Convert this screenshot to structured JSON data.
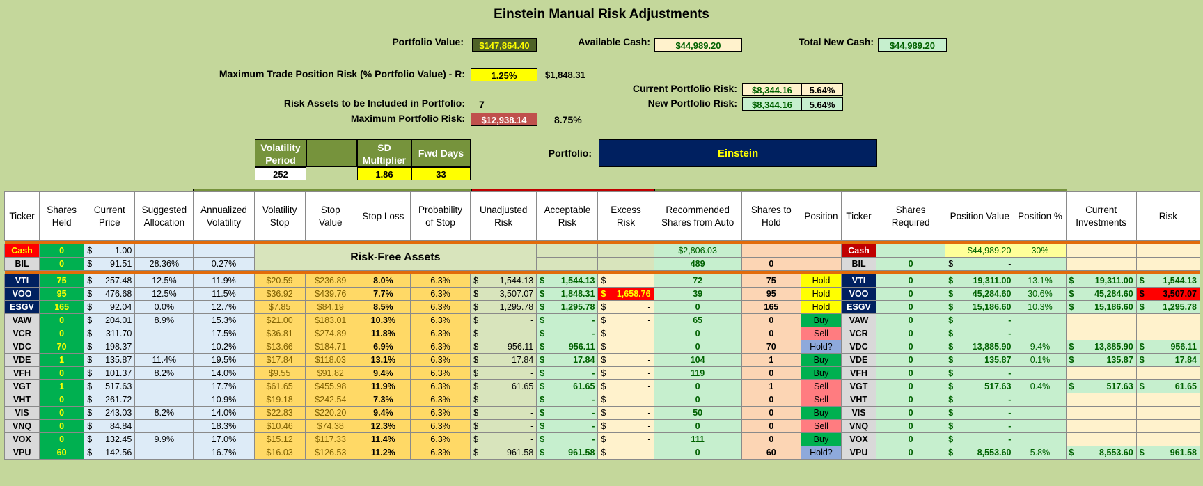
{
  "title": "Einstein Manual Risk Adjustments",
  "summary": {
    "portfolio_value_label": "Portfolio Value:",
    "portfolio_value": "$147,864.40",
    "available_cash_label": "Available Cash:",
    "available_cash": "$44,989.20",
    "total_new_cash_label": "Total New Cash:",
    "total_new_cash": "$44,989.20",
    "max_trade_risk_label": "Maximum Trade Position Risk (% Portfolio Value) - R:",
    "max_trade_risk_pct": "1.25%",
    "max_trade_risk_amt": "$1,848.31",
    "current_portfolio_risk_label": "Current Portfolio Risk:",
    "current_portfolio_risk": "$8,344.16",
    "current_portfolio_risk_pct": "5.64%",
    "new_portfolio_risk_label": "New Portfolio Risk:",
    "new_portfolio_risk": "$8,344.16",
    "new_portfolio_risk_pct": "5.64%",
    "risk_assets_label": "Risk Assets to be Included in Portfolio:",
    "risk_assets": "7",
    "max_portfolio_risk_label": "Maximum Portfolio Risk:",
    "max_portfolio_risk": "$12,938.14",
    "max_portfolio_risk_pct": "8.75%"
  },
  "params": {
    "vol_period_label": "Volatility Period",
    "vol_period": "252",
    "sd_label": "SD Multiplier",
    "sd": "1.86",
    "fwd_label": "Fwd Days",
    "fwd": "33",
    "portfolio_label": "Portfolio:",
    "portfolio_name": "Einstein"
  },
  "groups": {
    "vol_stop": "Volatility Stop",
    "risk_calc": "Risk Calculations",
    "new_holdings": "New Holdings"
  },
  "headers": [
    "Ticker",
    "Shares Held",
    "Current Price",
    "Suggested Allocation",
    "Annualized Volatility",
    "Volatility Stop",
    "Stop Value",
    "Stop Loss",
    "Probability of Stop",
    "Unadjusted Risk",
    "Acceptable Risk",
    "Excess Risk",
    "Recommended Shares from Auto",
    "Shares to Hold",
    "Position",
    "Ticker",
    "Shares Required",
    "Position Value",
    "Position %",
    "Current Investments",
    "Risk"
  ],
  "risk_free_label": "Risk-Free Assets",
  "cash_row": {
    "ticker": "Cash",
    "shares": "0",
    "price_sym": "$",
    "price": "1.00",
    "rec": "$2,806.03",
    "ticker2": "Cash",
    "posval": "$44,989.20",
    "pospct": "30%"
  },
  "bil_row": {
    "ticker": "BIL",
    "shares": "0",
    "price_sym": "$",
    "price": "91.51",
    "alloc": "28.36%",
    "vol": "0.27%",
    "rec": "489",
    "hold": "0",
    "ticker2": "BIL",
    "req": "0",
    "posval_sym": "$",
    "posval": "-"
  },
  "rows": [
    {
      "ticker": "VTI",
      "shares": "75",
      "price": "257.48",
      "alloc": "12.5%",
      "vol": "11.9%",
      "vstop": "$20.59",
      "sval": "$236.89",
      "sloss": "8.0%",
      "prob": "6.3%",
      "unadj": "1,544.13",
      "accept": "1,544.13",
      "excess": "-",
      "rec": "72",
      "hold": "75",
      "pos": "Hold",
      "req": "0",
      "posval": "19,311.00",
      "pospct": "13.1%",
      "curinv": "19,311.00",
      "risk": "1,544.13"
    },
    {
      "ticker": "VOO",
      "shares": "95",
      "price": "476.68",
      "alloc": "12.5%",
      "vol": "11.5%",
      "vstop": "$36.92",
      "sval": "$439.76",
      "sloss": "7.7%",
      "prob": "6.3%",
      "unadj": "3,507.07",
      "accept": "1,848.31",
      "excess": "1,658.76",
      "rec": "39",
      "hold": "95",
      "pos": "Hold",
      "req": "0",
      "posval": "45,284.60",
      "pospct": "30.6%",
      "curinv": "45,284.60",
      "risk": "3,507.07"
    },
    {
      "ticker": "ESGV",
      "shares": "165",
      "price": "92.04",
      "alloc": "0.0%",
      "vol": "12.7%",
      "vstop": "$7.85",
      "sval": "$84.19",
      "sloss": "8.5%",
      "prob": "6.3%",
      "unadj": "1,295.78",
      "accept": "1,295.78",
      "excess": "-",
      "rec": "0",
      "hold": "165",
      "pos": "Hold",
      "req": "0",
      "posval": "15,186.60",
      "pospct": "10.3%",
      "curinv": "15,186.60",
      "risk": "1,295.78"
    },
    {
      "ticker": "VAW",
      "shares": "0",
      "price": "204.01",
      "alloc": "8.9%",
      "vol": "15.3%",
      "vstop": "$21.00",
      "sval": "$183.01",
      "sloss": "10.3%",
      "prob": "6.3%",
      "unadj": "-",
      "accept": "-",
      "excess": "-",
      "rec": "65",
      "hold": "0",
      "pos": "Buy",
      "req": "0",
      "posval": "-",
      "pospct": "",
      "curinv": "",
      "risk": ""
    },
    {
      "ticker": "VCR",
      "shares": "0",
      "price": "311.70",
      "alloc": "",
      "vol": "17.5%",
      "vstop": "$36.81",
      "sval": "$274.89",
      "sloss": "11.8%",
      "prob": "6.3%",
      "unadj": "-",
      "accept": "-",
      "excess": "-",
      "rec": "0",
      "hold": "0",
      "pos": "Sell",
      "req": "0",
      "posval": "-",
      "pospct": "",
      "curinv": "",
      "risk": ""
    },
    {
      "ticker": "VDC",
      "shares": "70",
      "price": "198.37",
      "alloc": "",
      "vol": "10.2%",
      "vstop": "$13.66",
      "sval": "$184.71",
      "sloss": "6.9%",
      "prob": "6.3%",
      "unadj": "956.11",
      "accept": "956.11",
      "excess": "-",
      "rec": "0",
      "hold": "70",
      "pos": "Hold?",
      "req": "0",
      "posval": "13,885.90",
      "pospct": "9.4%",
      "curinv": "13,885.90",
      "risk": "956.11"
    },
    {
      "ticker": "VDE",
      "shares": "1",
      "price": "135.87",
      "alloc": "11.4%",
      "vol": "19.5%",
      "vstop": "$17.84",
      "sval": "$118.03",
      "sloss": "13.1%",
      "prob": "6.3%",
      "unadj": "17.84",
      "accept": "17.84",
      "excess": "-",
      "rec": "104",
      "hold": "1",
      "pos": "Buy",
      "req": "0",
      "posval": "135.87",
      "pospct": "0.1%",
      "curinv": "135.87",
      "risk": "17.84"
    },
    {
      "ticker": "VFH",
      "shares": "0",
      "price": "101.37",
      "alloc": "8.2%",
      "vol": "14.0%",
      "vstop": "$9.55",
      "sval": "$91.82",
      "sloss": "9.4%",
      "prob": "6.3%",
      "unadj": "-",
      "accept": "-",
      "excess": "-",
      "rec": "119",
      "hold": "0",
      "pos": "Buy",
      "req": "0",
      "posval": "-",
      "pospct": "",
      "curinv": "",
      "risk": ""
    },
    {
      "ticker": "VGT",
      "shares": "1",
      "price": "517.63",
      "alloc": "",
      "vol": "17.7%",
      "vstop": "$61.65",
      "sval": "$455.98",
      "sloss": "11.9%",
      "prob": "6.3%",
      "unadj": "61.65",
      "accept": "61.65",
      "excess": "-",
      "rec": "0",
      "hold": "1",
      "pos": "Sell",
      "req": "0",
      "posval": "517.63",
      "pospct": "0.4%",
      "curinv": "517.63",
      "risk": "61.65"
    },
    {
      "ticker": "VHT",
      "shares": "0",
      "price": "261.72",
      "alloc": "",
      "vol": "10.9%",
      "vstop": "$19.18",
      "sval": "$242.54",
      "sloss": "7.3%",
      "prob": "6.3%",
      "unadj": "-",
      "accept": "-",
      "excess": "-",
      "rec": "0",
      "hold": "0",
      "pos": "Sell",
      "req": "0",
      "posval": "-",
      "pospct": "",
      "curinv": "",
      "risk": ""
    },
    {
      "ticker": "VIS",
      "shares": "0",
      "price": "243.03",
      "alloc": "8.2%",
      "vol": "14.0%",
      "vstop": "$22.83",
      "sval": "$220.20",
      "sloss": "9.4%",
      "prob": "6.3%",
      "unadj": "-",
      "accept": "-",
      "excess": "-",
      "rec": "50",
      "hold": "0",
      "pos": "Buy",
      "req": "0",
      "posval": "-",
      "pospct": "",
      "curinv": "",
      "risk": ""
    },
    {
      "ticker": "VNQ",
      "shares": "0",
      "price": "84.84",
      "alloc": "",
      "vol": "18.3%",
      "vstop": "$10.46",
      "sval": "$74.38",
      "sloss": "12.3%",
      "prob": "6.3%",
      "unadj": "-",
      "accept": "-",
      "excess": "-",
      "rec": "0",
      "hold": "0",
      "pos": "Sell",
      "req": "0",
      "posval": "-",
      "pospct": "",
      "curinv": "",
      "risk": ""
    },
    {
      "ticker": "VOX",
      "shares": "0",
      "price": "132.45",
      "alloc": "9.9%",
      "vol": "17.0%",
      "vstop": "$15.12",
      "sval": "$117.33",
      "sloss": "11.4%",
      "prob": "6.3%",
      "unadj": "-",
      "accept": "-",
      "excess": "-",
      "rec": "111",
      "hold": "0",
      "pos": "Buy",
      "req": "0",
      "posval": "-",
      "pospct": "",
      "curinv": "",
      "risk": ""
    },
    {
      "ticker": "VPU",
      "shares": "60",
      "price": "142.56",
      "alloc": "",
      "vol": "16.7%",
      "vstop": "$16.03",
      "sval": "$126.53",
      "sloss": "11.2%",
      "prob": "6.3%",
      "unadj": "961.58",
      "accept": "961.58",
      "excess": "-",
      "rec": "0",
      "hold": "60",
      "pos": "Hold?",
      "req": "0",
      "posval": "8,553.60",
      "pospct": "5.8%",
      "curinv": "8,553.60",
      "risk": "961.58"
    }
  ],
  "colors": {
    "background": "#c4d79b",
    "navy": "#002060",
    "green_cell": "#c6efce",
    "orange": "#ffd966",
    "red": "#ff0000"
  }
}
